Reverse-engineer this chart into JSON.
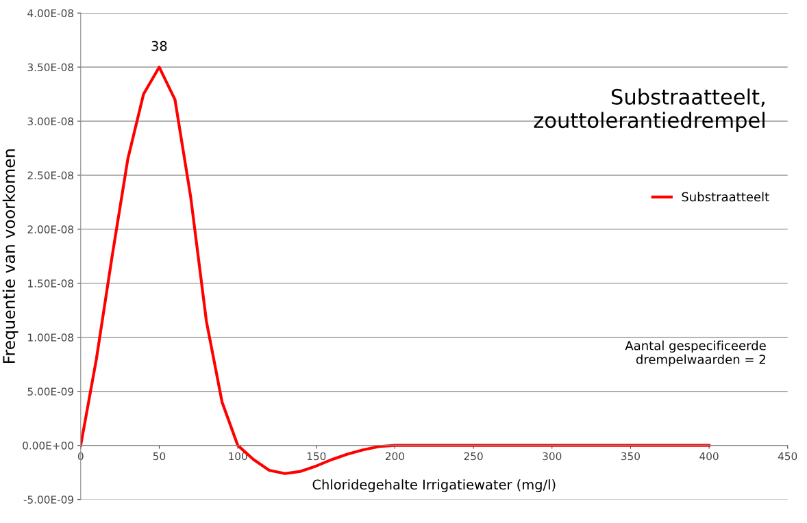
{
  "chart_data": {
    "type": "line",
    "title": "Substraatteelt,\nzouttolerantiedrempel",
    "xlabel": "Chloridegehalte Irrigatiewater (mg/l)",
    "ylabel": "Frequentie van voorkomen",
    "x": [
      0,
      10,
      20,
      30,
      40,
      50,
      60,
      70,
      80,
      90,
      100,
      110,
      120,
      130,
      140,
      150,
      160,
      170,
      180,
      190,
      200,
      250,
      300,
      350,
      400
    ],
    "series": [
      {
        "name": "Substraatteelt",
        "color": "#ff0000",
        "values": [
          0,
          8e-09,
          1.75e-08,
          2.65e-08,
          3.25e-08,
          3.5e-08,
          3.2e-08,
          2.3e-08,
          1.15e-08,
          4e-09,
          0,
          -1.3e-09,
          -2.3e-09,
          -2.6e-09,
          -2.4e-09,
          -1.9e-09,
          -1.3e-09,
          -8e-10,
          -4e-10,
          -1e-10,
          0,
          0,
          0,
          0,
          0
        ]
      }
    ],
    "xlim": [
      0,
      450
    ],
    "xticks": [
      0,
      50,
      100,
      150,
      200,
      250,
      300,
      350,
      400,
      450
    ],
    "ylim": [
      -5e-09,
      4e-08
    ],
    "yticks": [
      {
        "value": -5e-09,
        "label": "-5.00E-09"
      },
      {
        "value": 0,
        "label": "0.00E+00"
      },
      {
        "value": 5e-09,
        "label": "5.00E-09"
      },
      {
        "value": 1e-08,
        "label": "1.00E-08"
      },
      {
        "value": 1.5e-08,
        "label": "1.50E-08"
      },
      {
        "value": 2e-08,
        "label": "2.00E-08"
      },
      {
        "value": 2.5e-08,
        "label": "2.50E-08"
      },
      {
        "value": 3e-08,
        "label": "3.00E-08"
      },
      {
        "value": 3.5e-08,
        "label": "3.50E-08"
      },
      {
        "value": 4e-08,
        "label": "4.00E-08"
      }
    ],
    "annotations": [
      "38",
      "Aantal gespecificeerde\ndrempelwaarden = 2"
    ],
    "grid": "y",
    "legend": "right",
    "marker": "none",
    "line_style": "solid"
  }
}
